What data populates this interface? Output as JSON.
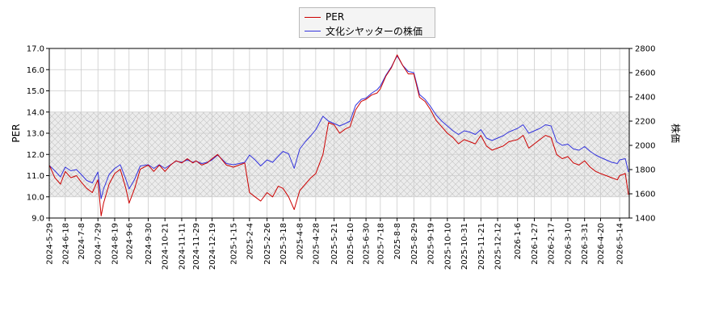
{
  "chart_data": {
    "type": "line",
    "title": "",
    "xlabel": "",
    "ylabel": "PER",
    "y2label": "株価",
    "ylim": [
      9.0,
      17.0
    ],
    "y2lim": [
      1400,
      2800
    ],
    "yticks": [
      "9.0",
      "10.0",
      "11.0",
      "12.0",
      "13.0",
      "14.0",
      "15.0",
      "16.0",
      "17.0"
    ],
    "y2ticks": [
      "1400",
      "1600",
      "1800",
      "2000",
      "2200",
      "2400",
      "2600",
      "2800"
    ],
    "xticks": [
      "2024-5-29",
      "2024-6-18",
      "2024-7-8",
      "2024-7-29",
      "2024-8-19",
      "2024-9-6",
      "2024-9-30",
      "2024-10-21",
      "2024-11-11",
      "2024-11-29",
      "2024-12-19",
      "2025-1-15",
      "2025-2-4",
      "2025-2-26",
      "2025-3-18",
      "2025-4-8",
      "2025-4-28",
      "2025-5-21",
      "2025-6-10",
      "2025-6-30",
      "2025-7-18",
      "2025-8-8",
      "2025-8-29",
      "2025-9-19",
      "2025-10-10",
      "2025-10-31",
      "2025-11-21",
      "2025-12-12",
      "2026-1-6",
      "2026-1-27",
      "2026-2-17",
      "2026-3-10",
      "2026-3-31",
      "2026-4-20",
      "2026-5-14"
    ],
    "band": {
      "from": 10.0,
      "to": 14.0
    },
    "grid": true,
    "legend_position": "top-center",
    "series": [
      {
        "name": "PER",
        "axis": "left",
        "color": "#cc0000",
        "x": [
          "2024-5-29",
          "2024-6-5",
          "2024-6-12",
          "2024-6-18",
          "2024-6-25",
          "2024-7-2",
          "2024-7-8",
          "2024-7-15",
          "2024-7-22",
          "2024-7-29",
          "2024-8-2",
          "2024-8-5",
          "2024-8-12",
          "2024-8-19",
          "2024-8-26",
          "2024-9-2",
          "2024-9-6",
          "2024-9-13",
          "2024-9-20",
          "2024-9-30",
          "2024-10-7",
          "2024-10-14",
          "2024-10-21",
          "2024-10-28",
          "2024-11-4",
          "2024-11-11",
          "2024-11-18",
          "2024-11-25",
          "2024-11-29",
          "2024-12-6",
          "2024-12-13",
          "2024-12-19",
          "2024-12-26",
          "2025-1-6",
          "2025-1-15",
          "2025-1-22",
          "2025-1-29",
          "2025-2-4",
          "2025-2-11",
          "2025-2-18",
          "2025-2-26",
          "2025-3-5",
          "2025-3-12",
          "2025-3-18",
          "2025-3-25",
          "2025-4-1",
          "2025-4-8",
          "2025-4-15",
          "2025-4-22",
          "2025-4-28",
          "2025-5-7",
          "2025-5-14",
          "2025-5-21",
          "2025-5-28",
          "2025-6-4",
          "2025-6-10",
          "2025-6-17",
          "2025-6-24",
          "2025-6-30",
          "2025-7-7",
          "2025-7-14",
          "2025-7-18",
          "2025-7-25",
          "2025-8-1",
          "2025-8-8",
          "2025-8-15",
          "2025-8-22",
          "2025-8-29",
          "2025-9-5",
          "2025-9-12",
          "2025-9-19",
          "2025-9-26",
          "2025-10-3",
          "2025-10-10",
          "2025-10-17",
          "2025-10-24",
          "2025-10-31",
          "2025-11-7",
          "2025-11-14",
          "2025-11-21",
          "2025-11-28",
          "2025-12-5",
          "2025-12-12",
          "2025-12-19",
          "2025-12-26",
          "2026-1-6",
          "2026-1-13",
          "2026-1-20",
          "2026-1-27",
          "2026-2-3",
          "2026-2-10",
          "2026-2-17",
          "2026-2-24",
          "2026-3-3",
          "2026-3-10",
          "2026-3-17",
          "2026-3-24",
          "2026-3-31",
          "2026-4-7",
          "2026-4-14",
          "2026-4-20",
          "2026-4-27",
          "2026-5-4",
          "2026-5-11",
          "2026-5-14",
          "2026-5-21",
          "2026-5-25"
        ],
        "values": [
          11.5,
          10.9,
          10.6,
          11.2,
          10.9,
          11.0,
          10.7,
          10.4,
          10.2,
          10.8,
          9.1,
          9.7,
          10.6,
          11.1,
          11.3,
          10.4,
          9.7,
          10.4,
          11.3,
          11.5,
          11.2,
          11.5,
          11.2,
          11.5,
          11.7,
          11.6,
          11.8,
          11.6,
          11.7,
          11.5,
          11.6,
          11.8,
          12.0,
          11.5,
          11.4,
          11.5,
          11.6,
          10.2,
          10.0,
          9.8,
          10.2,
          10.0,
          10.5,
          10.4,
          10.0,
          9.4,
          10.3,
          10.6,
          10.9,
          11.1,
          12.0,
          13.5,
          13.4,
          13.0,
          13.2,
          13.3,
          14.1,
          14.5,
          14.6,
          14.8,
          14.9,
          15.1,
          15.7,
          16.1,
          16.7,
          16.2,
          15.8,
          15.8,
          14.7,
          14.5,
          14.1,
          13.6,
          13.3,
          13.0,
          12.8,
          12.5,
          12.7,
          12.6,
          12.5,
          12.9,
          12.4,
          12.2,
          12.3,
          12.4,
          12.6,
          12.7,
          12.9,
          12.3,
          12.5,
          12.7,
          12.9,
          12.8,
          12.0,
          11.8,
          11.9,
          11.6,
          11.5,
          11.7,
          11.4,
          11.2,
          11.1,
          11.0,
          10.9,
          10.8,
          11.0,
          11.1,
          10.1
        ]
      },
      {
        "name": "文化シヤッターの株価",
        "axis": "right",
        "color": "#3333dd",
        "x": [
          "2024-5-29",
          "2024-6-5",
          "2024-6-12",
          "2024-6-18",
          "2024-6-25",
          "2024-7-2",
          "2024-7-8",
          "2024-7-15",
          "2024-7-22",
          "2024-7-29",
          "2024-8-2",
          "2024-8-5",
          "2024-8-12",
          "2024-8-19",
          "2024-8-26",
          "2024-9-2",
          "2024-9-6",
          "2024-9-13",
          "2024-9-20",
          "2024-9-30",
          "2024-10-7",
          "2024-10-14",
          "2024-10-21",
          "2024-10-28",
          "2024-11-4",
          "2024-11-11",
          "2024-11-18",
          "2024-11-25",
          "2024-11-29",
          "2024-12-6",
          "2024-12-13",
          "2024-12-19",
          "2024-12-26",
          "2025-1-6",
          "2025-1-15",
          "2025-1-22",
          "2025-1-29",
          "2025-2-4",
          "2025-2-11",
          "2025-2-18",
          "2025-2-26",
          "2025-3-5",
          "2025-3-12",
          "2025-3-18",
          "2025-3-25",
          "2025-4-1",
          "2025-4-8",
          "2025-4-15",
          "2025-4-22",
          "2025-4-28",
          "2025-5-7",
          "2025-5-14",
          "2025-5-21",
          "2025-5-28",
          "2025-6-4",
          "2025-6-10",
          "2025-6-17",
          "2025-6-24",
          "2025-6-30",
          "2025-7-7",
          "2025-7-14",
          "2025-7-18",
          "2025-7-25",
          "2025-8-1",
          "2025-8-8",
          "2025-8-15",
          "2025-8-22",
          "2025-8-29",
          "2025-9-5",
          "2025-9-12",
          "2025-9-19",
          "2025-9-26",
          "2025-10-3",
          "2025-10-10",
          "2025-10-17",
          "2025-10-24",
          "2025-10-31",
          "2025-11-7",
          "2025-11-14",
          "2025-11-21",
          "2025-11-28",
          "2025-12-5",
          "2025-12-12",
          "2025-12-19",
          "2025-12-26",
          "2026-1-6",
          "2026-1-13",
          "2026-1-20",
          "2026-1-27",
          "2026-2-3",
          "2026-2-10",
          "2026-2-17",
          "2026-2-24",
          "2026-3-3",
          "2026-3-10",
          "2026-3-17",
          "2026-3-24",
          "2026-3-31",
          "2026-4-7",
          "2026-4-14",
          "2026-4-20",
          "2026-4-27",
          "2026-5-4",
          "2026-5-11",
          "2026-5-14",
          "2026-5-21",
          "2026-5-25"
        ],
        "values": [
          1835,
          1790,
          1740,
          1820,
          1790,
          1800,
          1760,
          1710,
          1690,
          1780,
          1560,
          1640,
          1760,
          1810,
          1840,
          1720,
          1640,
          1720,
          1830,
          1840,
          1810,
          1840,
          1810,
          1840,
          1870,
          1860,
          1880,
          1860,
          1870,
          1850,
          1860,
          1880,
          1920,
          1850,
          1840,
          1850,
          1860,
          1920,
          1880,
          1830,
          1880,
          1860,
          1910,
          1950,
          1930,
          1810,
          1970,
          2030,
          2080,
          2130,
          2240,
          2200,
          2180,
          2160,
          2180,
          2200,
          2330,
          2380,
          2390,
          2430,
          2460,
          2490,
          2580,
          2650,
          2740,
          2660,
          2610,
          2600,
          2420,
          2380,
          2320,
          2250,
          2200,
          2160,
          2120,
          2090,
          2120,
          2110,
          2090,
          2130,
          2060,
          2040,
          2060,
          2080,
          2110,
          2140,
          2170,
          2100,
          2120,
          2140,
          2170,
          2160,
          2030,
          2000,
          2010,
          1970,
          1960,
          1990,
          1950,
          1920,
          1900,
          1880,
          1860,
          1850,
          1880,
          1890,
          1780
        ]
      }
    ]
  }
}
